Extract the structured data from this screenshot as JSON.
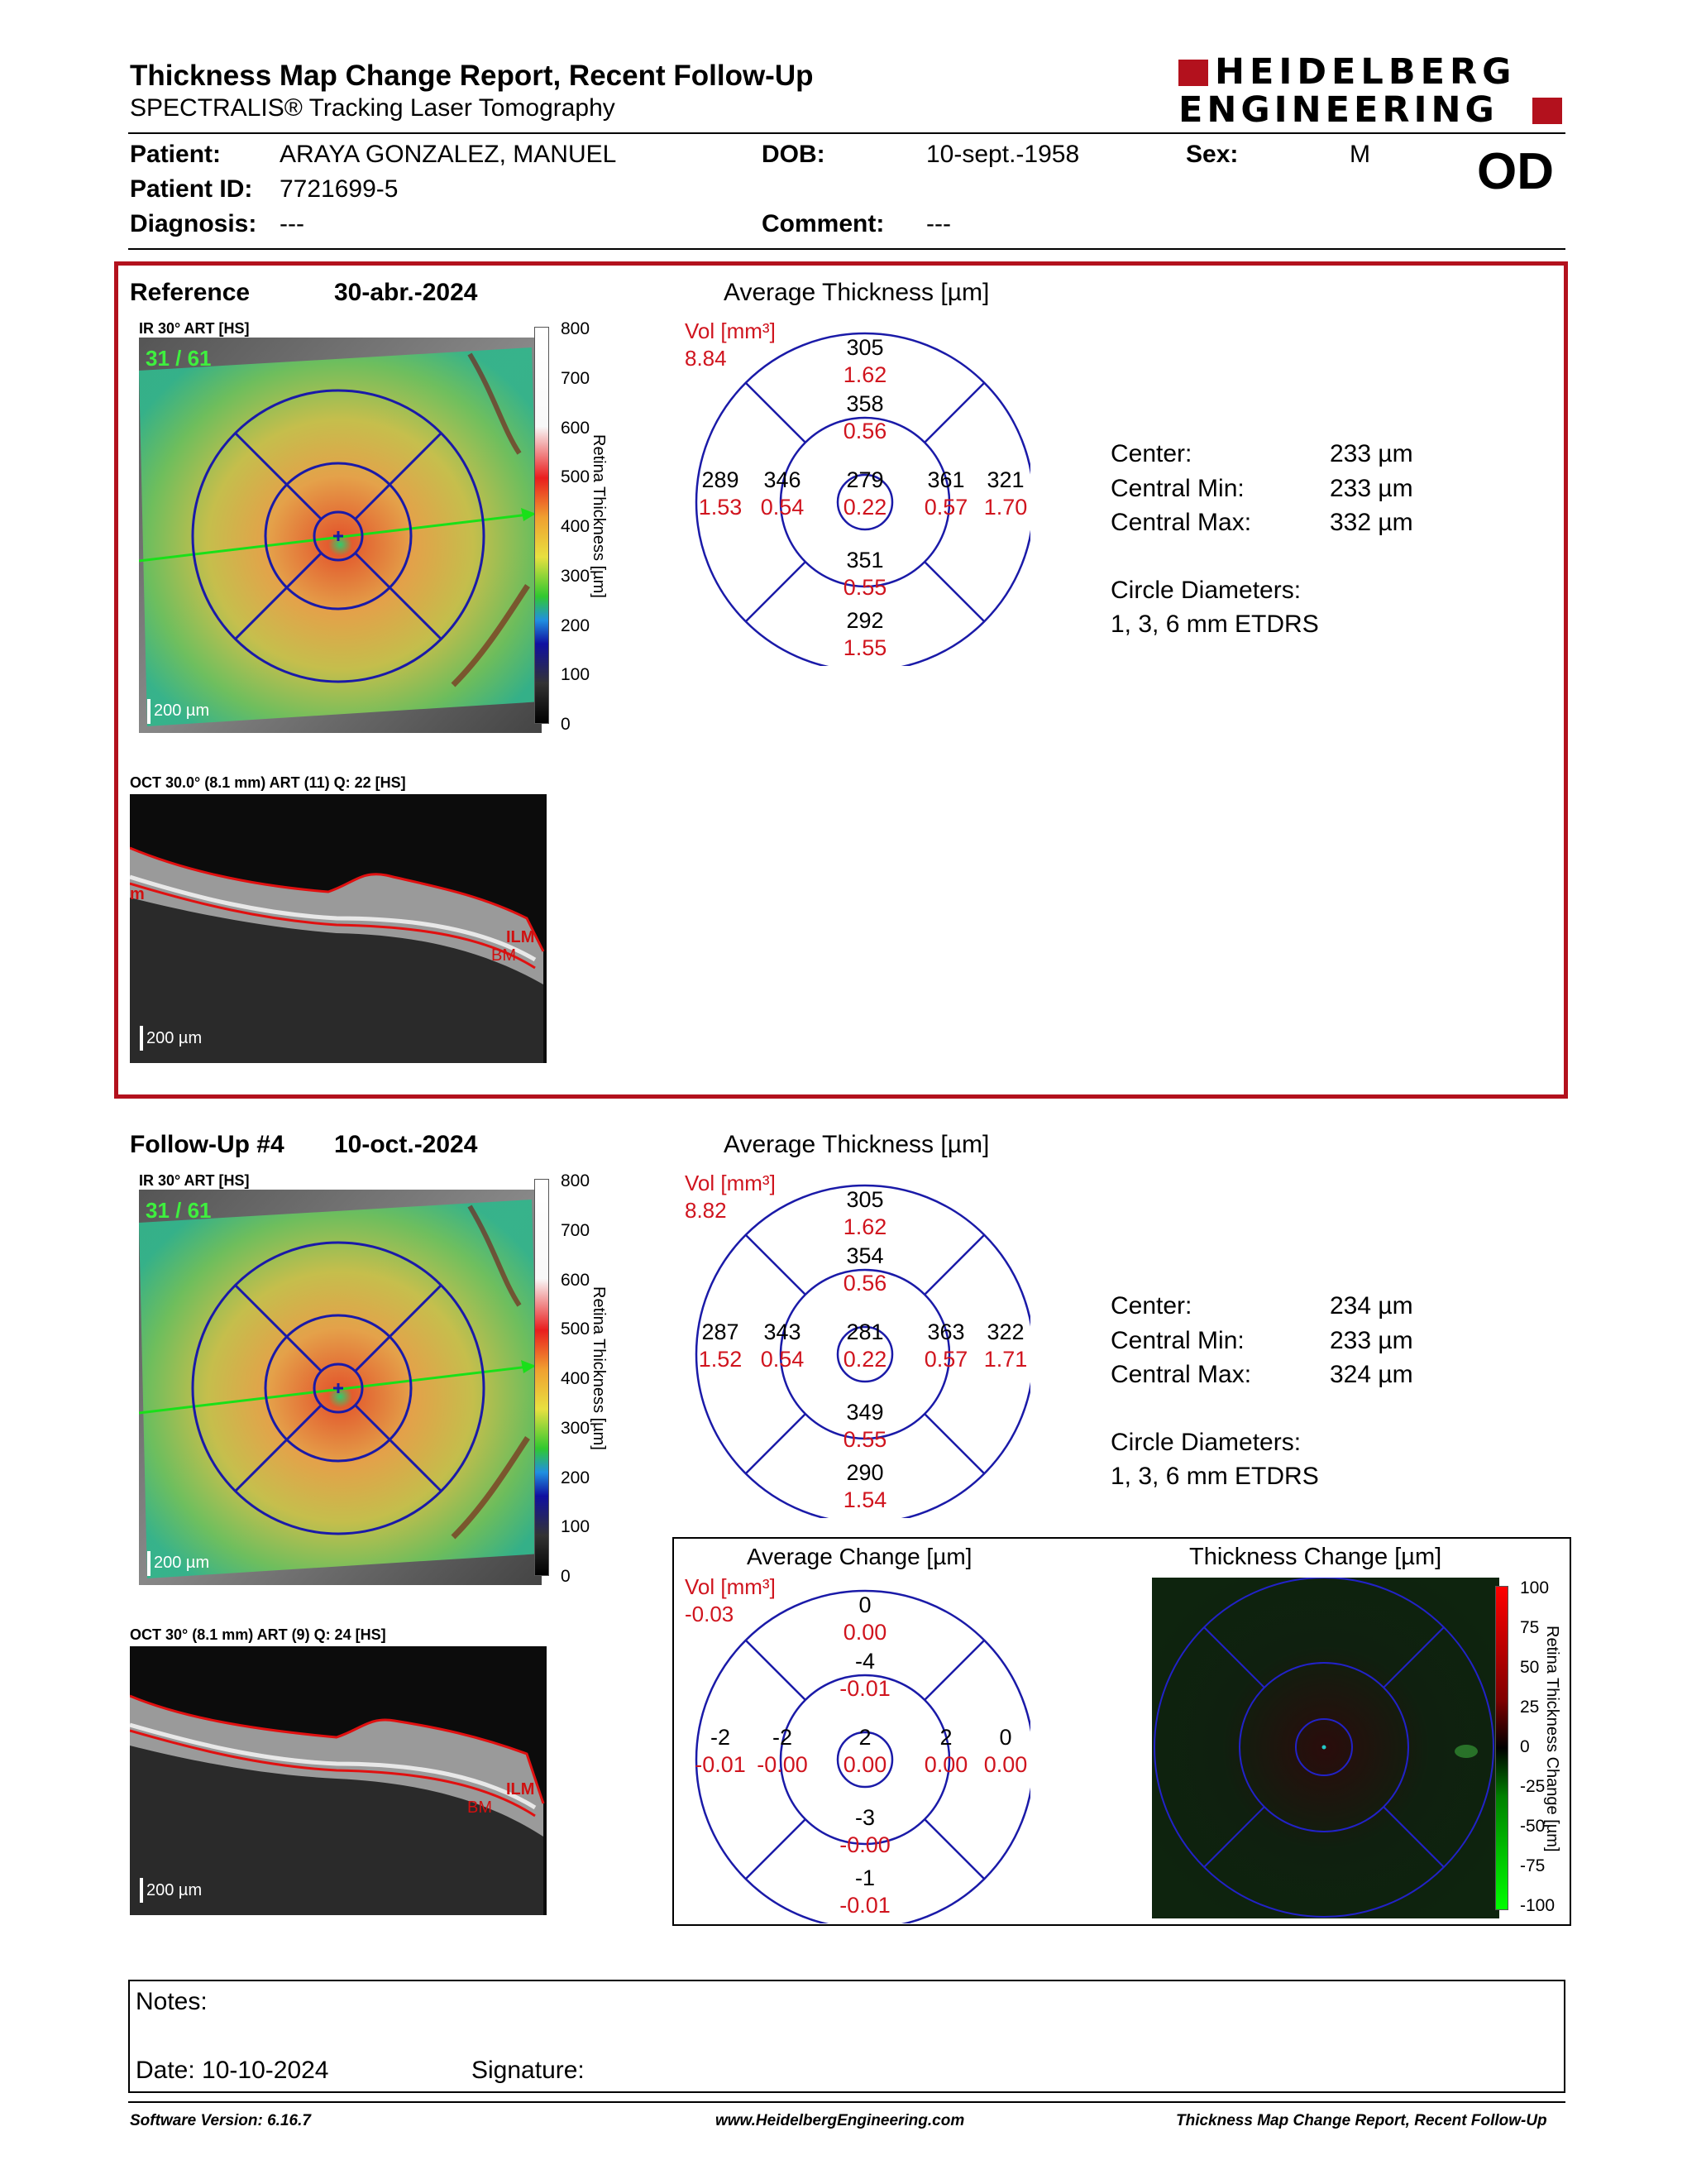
{
  "header": {
    "title": "Thickness Map Change Report, Recent Follow-Up",
    "subtitle": "SPECTRALIS® Tracking Laser Tomography",
    "logo_line1": "HEIDELBERG",
    "logo_line2": "ENGINEERING",
    "eye": "OD"
  },
  "patient": {
    "patient_label": "Patient:",
    "patient_value": "ARAYA GONZALEZ, MANUEL",
    "dob_label": "DOB:",
    "dob_value": "10-sept.-1958",
    "sex_label": "Sex:",
    "sex_value": "M",
    "id_label": "Patient ID:",
    "id_value": "7721699-5",
    "diagnosis_label": "Diagnosis:",
    "diagnosis_value": "---",
    "comment_label": "Comment:",
    "comment_value": "---"
  },
  "reference": {
    "title": "Reference",
    "date": "30-abr.-2024",
    "ir_label": "IR 30° ART [HS]",
    "frame_count": "31 / 61",
    "scale_label": "200 µm",
    "oct_label": "OCT 30.0° (8.1 mm) ART (11) Q: 22 [HS]",
    "oct_scale": "200 µm",
    "ilm": "ILM",
    "bm": "BM",
    "avg_title": "Average Thickness [µm]",
    "vol_label": "Vol [mm³]",
    "vol_value": "8.84",
    "sectors": {
      "outer_top": [
        "305",
        "1.62"
      ],
      "inner_top": [
        "358",
        "0.56"
      ],
      "center": [
        "279",
        "0.22"
      ],
      "inner_left": [
        "346",
        "0.54"
      ],
      "inner_right": [
        "361",
        "0.57"
      ],
      "outer_left": [
        "289",
        "1.53"
      ],
      "outer_right": [
        "321",
        "1.70"
      ],
      "inner_bottom": [
        "351",
        "0.55"
      ],
      "outer_bottom": [
        "292",
        "1.55"
      ]
    },
    "stats": {
      "center_label": "Center:",
      "center_value": "233 µm",
      "min_label": "Central Min:",
      "min_value": "233 µm",
      "max_label": "Central Max:",
      "max_value": "332 µm",
      "diam_label": "Circle Diameters:",
      "diam_value": "1, 3, 6 mm ETDRS"
    }
  },
  "followup": {
    "title": "Follow-Up #4",
    "date": "10-oct.-2024",
    "ir_label": "IR 30° ART [HS]",
    "frame_count": "31 / 61",
    "scale_label": "200 µm",
    "oct_label": "OCT 30° (8.1 mm) ART (9) Q: 24 [HS]",
    "oct_scale": "200 µm",
    "ilm": "ILM",
    "bm": "BM",
    "avg_title": "Average Thickness [µm]",
    "vol_label": "Vol [mm³]",
    "vol_value": "8.82",
    "sectors": {
      "outer_top": [
        "305",
        "1.62"
      ],
      "inner_top": [
        "354",
        "0.56"
      ],
      "center": [
        "281",
        "0.22"
      ],
      "inner_left": [
        "343",
        "0.54"
      ],
      "inner_right": [
        "363",
        "0.57"
      ],
      "outer_left": [
        "287",
        "1.52"
      ],
      "outer_right": [
        "322",
        "1.71"
      ],
      "inner_bottom": [
        "349",
        "0.55"
      ],
      "outer_bottom": [
        "290",
        "1.54"
      ]
    },
    "stats": {
      "center_label": "Center:",
      "center_value": "234 µm",
      "min_label": "Central Min:",
      "min_value": "233 µm",
      "max_label": "Central Max:",
      "max_value": "324 µm",
      "diam_label": "Circle Diameters:",
      "diam_value": "1, 3, 6 mm ETDRS"
    }
  },
  "change": {
    "avg_title": "Average Change [µm]",
    "map_title": "Thickness Change [µm]",
    "vol_label": "Vol [mm³]",
    "vol_value": "-0.03",
    "sectors": {
      "outer_top": [
        "0",
        "0.00"
      ],
      "inner_top": [
        "-4",
        "-0.01"
      ],
      "center": [
        "2",
        "0.00"
      ],
      "inner_left": [
        "-2",
        "-0.00"
      ],
      "inner_right": [
        "2",
        "0.00"
      ],
      "outer_left": [
        "-2",
        "-0.01"
      ],
      "outer_right": [
        "0",
        "0.00"
      ],
      "inner_bottom": [
        "-3",
        "-0.00"
      ],
      "outer_bottom": [
        "-1",
        "-0.01"
      ]
    },
    "scale_ticks": [
      "100",
      "75",
      "50",
      "25",
      "0",
      "-25",
      "-50",
      "-75",
      "-100"
    ],
    "scale_axis_label": "Retina Thickness Change [µm]"
  },
  "thickness_scale": {
    "ticks": [
      "800",
      "700",
      "600",
      "500",
      "400",
      "300",
      "200",
      "100",
      "0"
    ],
    "axis_label": "Retina Thickness [µm]"
  },
  "notes": {
    "notes_label": "Notes:",
    "date_label": "Date: 10-10-2024",
    "signature_label": "Signature:"
  },
  "footer": {
    "software": "Software Version: 6.16.7",
    "url": "www.HeidelbergEngineering.com",
    "report": "Thickness Map Change Report, Recent Follow-Up"
  },
  "colors": {
    "brand_red": "#b3111d",
    "grid_blue": "#1a1aa8",
    "value_red": "#d0141e"
  }
}
